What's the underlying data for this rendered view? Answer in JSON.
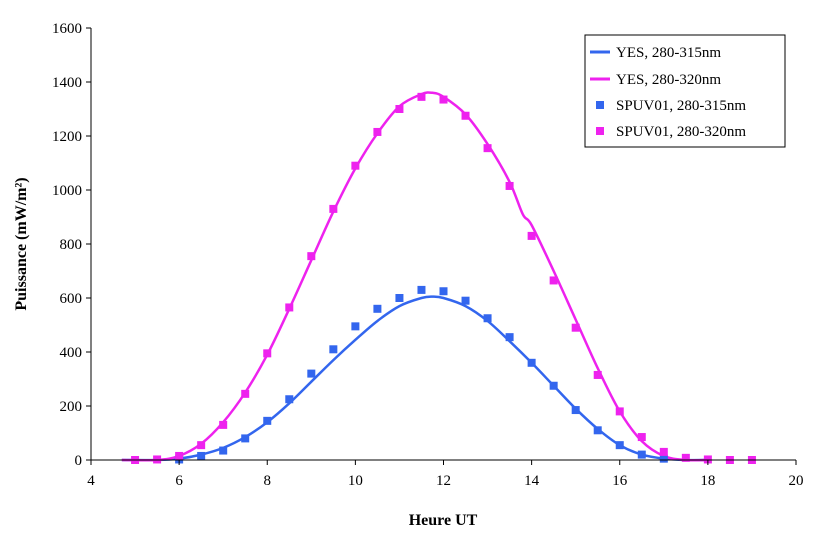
{
  "chart_data": {
    "type": "line",
    "xlabel": "Heure UT",
    "ylabel": "Puissance (mW/m²)",
    "xlim": [
      4,
      20
    ],
    "ylim": [
      0,
      1600
    ],
    "xticks": [
      "4",
      "6",
      "8",
      "10",
      "12",
      "14",
      "16",
      "18",
      "20"
    ],
    "yticks": [
      "0",
      "200",
      "400",
      "600",
      "800",
      "1000",
      "1200",
      "1400",
      "1600"
    ],
    "grid": false,
    "legend_position": "top-right",
    "series": [
      {
        "name": "YES, 280-315nm",
        "kind": "line",
        "color": "#3366ee",
        "x": [
          4.7,
          5.5,
          6.0,
          6.5,
          7.0,
          7.5,
          8.0,
          8.5,
          9.0,
          9.5,
          10.0,
          10.5,
          11.0,
          11.5,
          11.75,
          12.0,
          12.5,
          13.0,
          13.5,
          14.0,
          14.5,
          15.0,
          15.5,
          16.0,
          16.5,
          17.0,
          17.5,
          18.0
        ],
        "y": [
          0,
          0,
          5,
          20,
          45,
          85,
          140,
          210,
          290,
          370,
          445,
          515,
          570,
          600,
          605,
          600,
          570,
          515,
          440,
          360,
          275,
          190,
          115,
          55,
          20,
          5,
          0,
          0
        ]
      },
      {
        "name": "YES, 280-320nm",
        "kind": "line",
        "color": "#ee22ee",
        "x": [
          4.7,
          5.5,
          6.0,
          6.5,
          7.0,
          7.5,
          8.0,
          8.5,
          9.0,
          9.5,
          10.0,
          10.5,
          11.0,
          11.5,
          11.75,
          12.0,
          12.5,
          13.0,
          13.5,
          13.8,
          14.0,
          14.5,
          15.0,
          15.5,
          16.0,
          16.5,
          17.0,
          17.5,
          18.0
        ],
        "y": [
          0,
          0,
          15,
          60,
          140,
          250,
          390,
          560,
          740,
          920,
          1080,
          1210,
          1310,
          1355,
          1360,
          1345,
          1280,
          1170,
          1030,
          910,
          870,
          700,
          520,
          340,
          180,
          70,
          15,
          0,
          0
        ]
      },
      {
        "name": "SPUV01, 280-315nm",
        "kind": "scatter",
        "color": "#3366ee",
        "x": [
          6.0,
          6.5,
          7.0,
          7.5,
          8.0,
          8.5,
          9.0,
          9.5,
          10.0,
          10.5,
          11.0,
          11.5,
          12.0,
          12.5,
          13.0,
          13.5,
          14.0,
          14.5,
          15.0,
          15.5,
          16.0,
          16.5,
          17.0
        ],
        "y": [
          2,
          15,
          35,
          80,
          145,
          225,
          320,
          410,
          495,
          560,
          600,
          630,
          625,
          590,
          525,
          455,
          360,
          275,
          185,
          110,
          55,
          20,
          5
        ]
      },
      {
        "name": "SPUV01, 280-320nm",
        "kind": "scatter",
        "color": "#ee22ee",
        "x": [
          5.0,
          5.5,
          6.0,
          6.5,
          7.0,
          7.5,
          8.0,
          8.5,
          9.0,
          9.5,
          10.0,
          10.5,
          11.0,
          11.5,
          12.0,
          12.5,
          13.0,
          13.5,
          14.0,
          14.5,
          15.0,
          15.5,
          16.0,
          16.5,
          17.0,
          17.5,
          18.0,
          18.5,
          19.0
        ],
        "y": [
          0,
          2,
          15,
          55,
          130,
          245,
          395,
          565,
          755,
          930,
          1090,
          1215,
          1300,
          1345,
          1335,
          1275,
          1155,
          1015,
          830,
          665,
          490,
          315,
          180,
          85,
          30,
          8,
          2,
          0,
          0
        ]
      }
    ]
  }
}
